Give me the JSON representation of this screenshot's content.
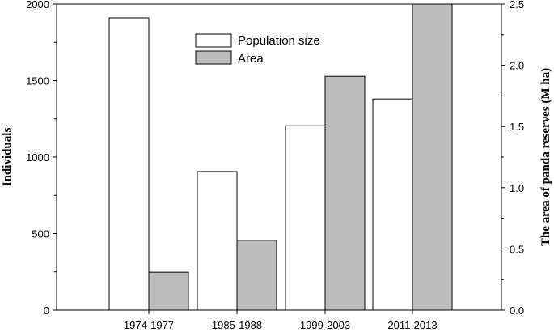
{
  "chart_data": {
    "type": "bar",
    "categories": [
      "1974-1977",
      "1985-1988",
      "1999-2003",
      "2011-2013"
    ],
    "series": [
      {
        "name": "Population size",
        "axis": "left",
        "color": "#ffffff",
        "values": [
          1910,
          905,
          1205,
          1380
        ]
      },
      {
        "name": "Area",
        "axis": "right",
        "color": "#bdbdbd",
        "values": [
          0.31,
          0.57,
          1.91,
          2.5
        ]
      }
    ],
    "ylabel": "Individuals",
    "ylabel_right": "The area of panda reserves (M ha)",
    "ylim": [
      0,
      2000
    ],
    "ylim_right": [
      0,
      2.5
    ],
    "yticks": [
      "0",
      "500",
      "1000",
      "1500",
      "2000"
    ],
    "yticks_right": [
      "0.0",
      "0.5",
      "1.0",
      "1.5",
      "2.0",
      "2.5"
    ],
    "grid": false,
    "legend_position": "top-center"
  }
}
